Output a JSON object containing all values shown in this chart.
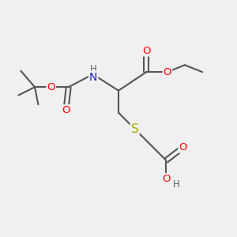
{
  "background_color": "#f0f0f0",
  "bond_color": "#555555",
  "bond_width": 1.5,
  "atom_colors": {
    "O": "#ff0000",
    "N": "#2222cc",
    "S": "#aaaa00",
    "H": "#606060",
    "C": "#555555"
  },
  "font_size": 9.5
}
